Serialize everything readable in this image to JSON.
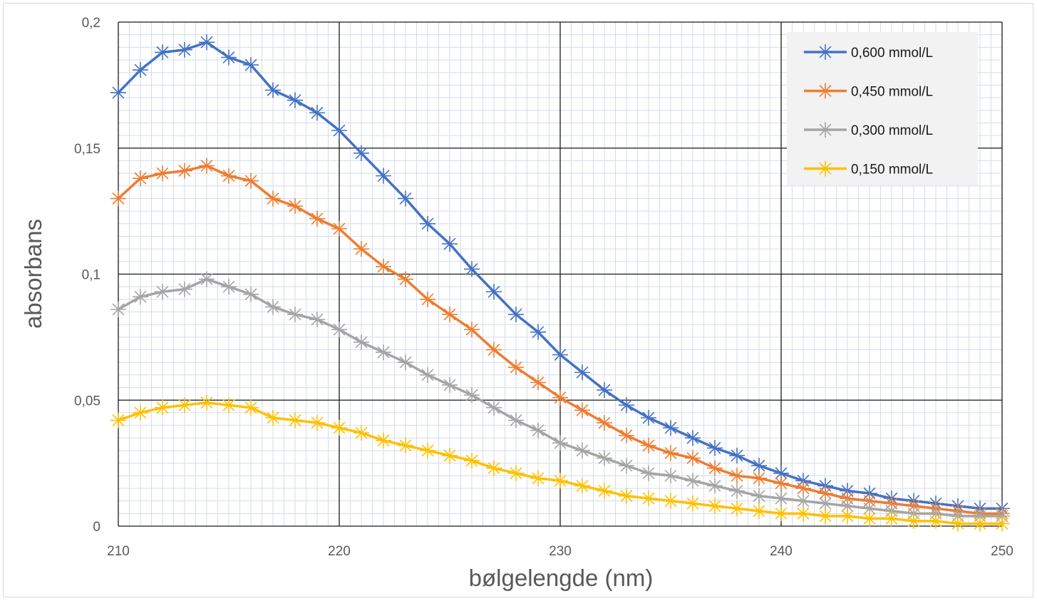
{
  "chart_data": {
    "type": "line",
    "title": "",
    "xlabel": "bølgelengde (nm)",
    "ylabel": "absorbans",
    "xlim": [
      210,
      250
    ],
    "ylim": [
      0,
      0.2
    ],
    "x_ticks": [
      210,
      220,
      230,
      240,
      250
    ],
    "y_ticks": [
      0,
      0.05,
      0.1,
      0.15,
      0.2
    ],
    "x_tick_labels": [
      "210",
      "220",
      "230",
      "240",
      "250"
    ],
    "y_tick_labels": [
      "0",
      "0,05",
      "0,1",
      "0,15",
      "0,2"
    ],
    "grid": "major and minor",
    "legend_position": "top-right",
    "marker": "asterisk",
    "x": [
      210,
      211,
      212,
      213,
      214,
      215,
      216,
      217,
      218,
      219,
      220,
      221,
      222,
      223,
      224,
      225,
      226,
      227,
      228,
      229,
      230,
      231,
      232,
      233,
      234,
      235,
      236,
      237,
      238,
      239,
      240,
      241,
      242,
      243,
      244,
      245,
      246,
      247,
      248,
      249,
      250
    ],
    "series": [
      {
        "name": "0,600 mmol/L",
        "color": "#4472C4",
        "values": [
          0.172,
          0.181,
          0.188,
          0.189,
          0.192,
          0.186,
          0.183,
          0.173,
          0.169,
          0.164,
          0.157,
          0.148,
          0.139,
          0.13,
          0.12,
          0.112,
          0.102,
          0.093,
          0.084,
          0.077,
          0.068,
          0.061,
          0.054,
          0.048,
          0.043,
          0.039,
          0.035,
          0.031,
          0.028,
          0.024,
          0.021,
          0.018,
          0.016,
          0.014,
          0.013,
          0.011,
          0.01,
          0.009,
          0.008,
          0.007,
          0.007
        ]
      },
      {
        "name": "0,450 mmol/L",
        "color": "#ED7D31",
        "values": [
          0.13,
          0.138,
          0.14,
          0.141,
          0.143,
          0.139,
          0.137,
          0.13,
          0.127,
          0.122,
          0.118,
          0.11,
          0.103,
          0.098,
          0.09,
          0.084,
          0.078,
          0.07,
          0.063,
          0.057,
          0.051,
          0.046,
          0.041,
          0.036,
          0.032,
          0.029,
          0.027,
          0.023,
          0.02,
          0.019,
          0.017,
          0.015,
          0.013,
          0.011,
          0.01,
          0.009,
          0.008,
          0.007,
          0.006,
          0.005,
          0.005
        ]
      },
      {
        "name": "0,300 mmol/L",
        "color": "#A5A5A5",
        "values": [
          0.086,
          0.091,
          0.093,
          0.094,
          0.098,
          0.095,
          0.092,
          0.087,
          0.084,
          0.082,
          0.078,
          0.073,
          0.069,
          0.065,
          0.06,
          0.056,
          0.052,
          0.047,
          0.042,
          0.038,
          0.033,
          0.03,
          0.027,
          0.024,
          0.021,
          0.02,
          0.018,
          0.016,
          0.014,
          0.012,
          0.011,
          0.01,
          0.009,
          0.008,
          0.007,
          0.006,
          0.005,
          0.005,
          0.004,
          0.004,
          0.004
        ]
      },
      {
        "name": "0,150 mmol/L",
        "color": "#FFC000",
        "values": [
          0.042,
          0.045,
          0.047,
          0.048,
          0.049,
          0.048,
          0.047,
          0.043,
          0.042,
          0.041,
          0.039,
          0.037,
          0.034,
          0.032,
          0.03,
          0.028,
          0.026,
          0.023,
          0.021,
          0.019,
          0.018,
          0.016,
          0.014,
          0.012,
          0.011,
          0.01,
          0.009,
          0.008,
          0.007,
          0.006,
          0.005,
          0.005,
          0.004,
          0.004,
          0.003,
          0.003,
          0.002,
          0.002,
          0.001,
          0.001,
          0.001
        ]
      }
    ]
  }
}
